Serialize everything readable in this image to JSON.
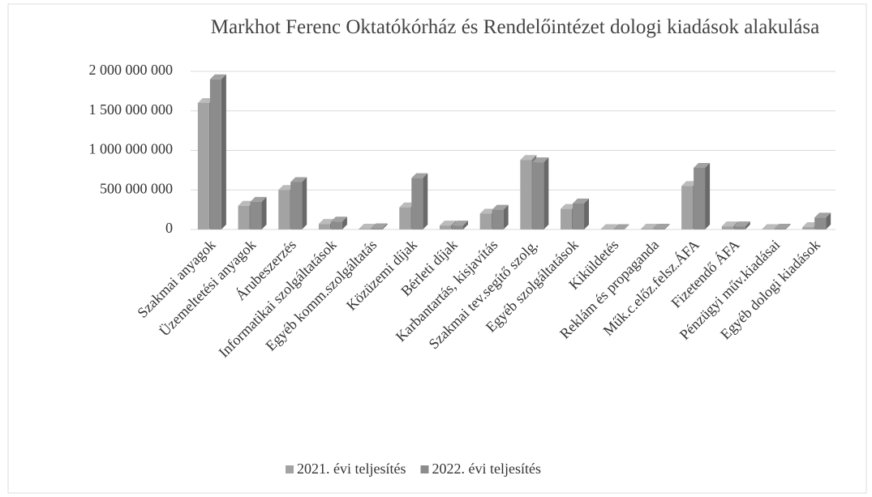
{
  "chart_data": {
    "type": "bar3d",
    "title": "Markhot Ferenc Oktatókórház és Rendelőintézet dologi kiadások alakulása",
    "categories": [
      "Szakmai anyagok",
      "Üzemeltetési anyagok",
      "Árubeszerzés",
      "Informatikai szolgáltatások",
      "Egyéb komm.szolgáltatás",
      "Közüzemi díjak",
      "Bérleti díjak",
      "Karbantartás, kisjavítás",
      "Szakmai tev.segítő szolg.",
      "Egyéb szolgáltatások",
      "Kiküldetés",
      "Reklám és propaganda",
      "Műk.c.előz.felsz.ÁFA",
      "Fizetendő ÁFA",
      "Pénzügyi műv.kiadásai",
      "Egyéb dologi kiadások"
    ],
    "series": [
      {
        "name": "2021. évi teljesítés",
        "color": "#a3a3a3",
        "values": [
          1600000000,
          300000000,
          500000000,
          70000000,
          10000000,
          280000000,
          50000000,
          200000000,
          880000000,
          260000000,
          5000000,
          10000000,
          550000000,
          40000000,
          5000000,
          30000000
        ]
      },
      {
        "name": "2022. évi teljesítés",
        "color": "#8c8c8c",
        "values": [
          1900000000,
          350000000,
          600000000,
          100000000,
          15000000,
          650000000,
          50000000,
          250000000,
          850000000,
          330000000,
          5000000,
          10000000,
          780000000,
          40000000,
          10000000,
          150000000
        ]
      }
    ],
    "ylim": [
      0,
      2000000000
    ],
    "yticks": [
      {
        "value": 0,
        "label": "0"
      },
      {
        "value": 500000000,
        "label": "500 000 000"
      },
      {
        "value": 1000000000,
        "label": "1 000 000 000"
      },
      {
        "value": 1500000000,
        "label": "1 500 000 000"
      },
      {
        "value": 2000000000,
        "label": "2 000 000 000"
      }
    ],
    "grid": true,
    "legend": "bottom"
  }
}
